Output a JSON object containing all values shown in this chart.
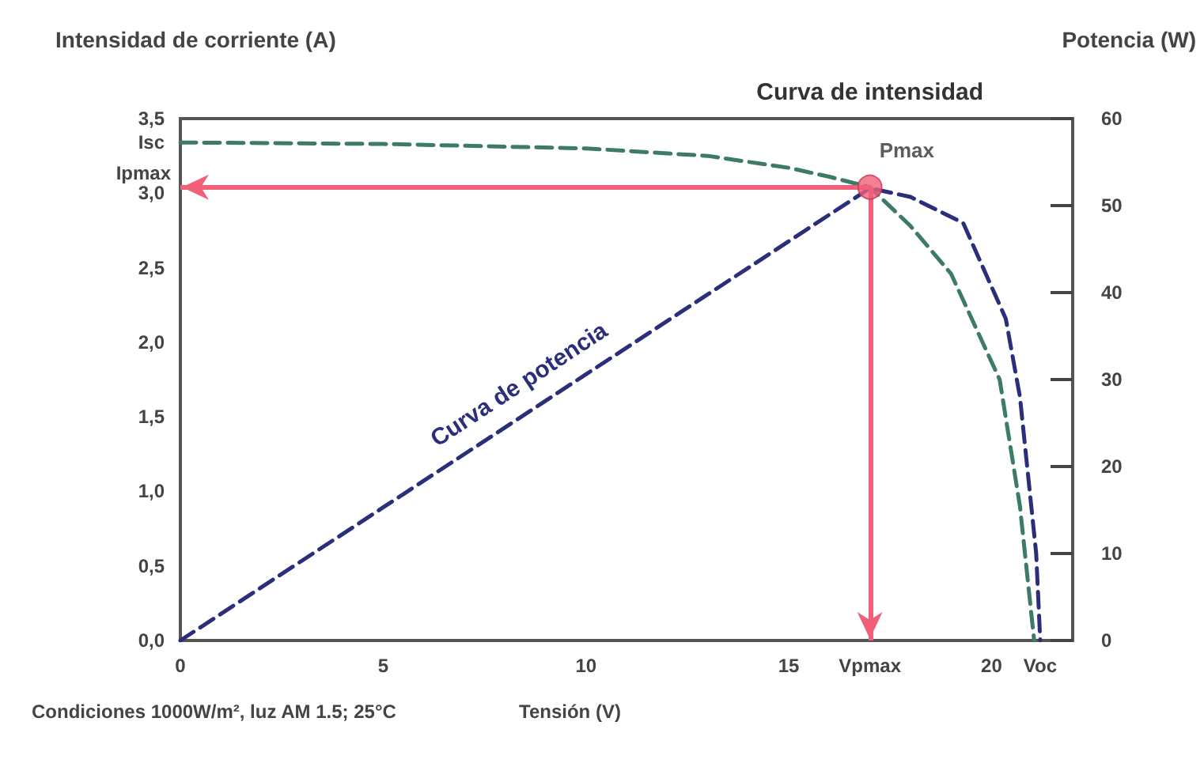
{
  "chart_data": {
    "type": "line",
    "ylabel": "Intensidad de corriente (A)",
    "y2label": "Potencia (W)",
    "xlabel": "Tensión (V)",
    "annotations": [
      "Condiciones 1000W/m², luz AM 1.5; 25°C",
      {
        "text": "Pmax",
        "x": 17,
        "y": 3.04
      }
    ],
    "series": [
      {
        "name": "Curva de intensidad",
        "color": "#3d7a68",
        "x": [
          0,
          5,
          10,
          13,
          15,
          16,
          17,
          18,
          19,
          20.2,
          20.7,
          21.05
        ],
        "values": [
          3.34,
          3.33,
          3.3,
          3.25,
          3.17,
          3.11,
          3.04,
          2.78,
          2.46,
          1.75,
          0.9,
          0
        ]
      },
      {
        "name": "Curva de potencia",
        "color": "#2b2f7a",
        "axis": "y2",
        "x": [
          0,
          5,
          10,
          15,
          17,
          18,
          19.3,
          20.35,
          20.7,
          21.1,
          21.2
        ],
        "values": [
          0,
          15.3,
          30.6,
          45.9,
          52,
          51,
          48,
          37,
          28,
          10,
          0
        ]
      }
    ],
    "xlim": [
      0,
      22
    ],
    "xticks": [
      0,
      5,
      10,
      15,
      {
        "value": 17,
        "label": "Vpmax"
      },
      20,
      {
        "value": 21.2,
        "label": "Voc"
      }
    ],
    "ylim": [
      0,
      3.5
    ],
    "yticks": [
      {
        "value": 0,
        "label": "0,0"
      },
      {
        "value": 0.5,
        "label": "0,5"
      },
      {
        "value": 1,
        "label": "1,0"
      },
      {
        "value": 1.5,
        "label": "1,5"
      },
      {
        "value": 2,
        "label": "2,0"
      },
      {
        "value": 2.5,
        "label": "2,5"
      },
      {
        "value": 3,
        "label": "3,0"
      },
      {
        "value": 3.34,
        "label": "Isc"
      },
      {
        "value": 3.5,
        "label": "3,5"
      }
    ],
    "y2lim": [
      0,
      60
    ],
    "y2ticks": [
      0,
      10,
      20,
      30,
      40,
      50,
      60
    ],
    "ref_lines": [
      {
        "axis": "y",
        "value": 3.04,
        "color": "#f0607a",
        "label": "Ipmax"
      },
      {
        "axis": "x",
        "value": 17,
        "color": "#f0607a"
      }
    ],
    "grid": false,
    "marker": "none",
    "line_style": "dashed"
  }
}
